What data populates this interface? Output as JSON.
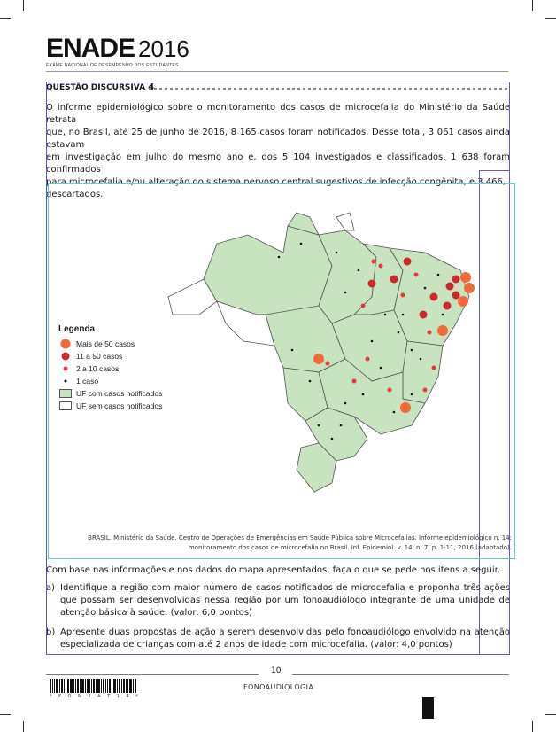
{
  "header": {
    "logo_main": "ENADE",
    "logo_year": "2016",
    "logo_subtitle": "EXAME NACIONAL DE DESEMPENHO DOS ESTUDANTES"
  },
  "question": {
    "title_prefix": "QUESTÃO DISCURSIVA",
    "title_number": "4",
    "lines": [
      "O informe epidemiológico sobre o monitoramento dos casos de microcefalia do Ministério da Saúde retrata",
      "que, no Brasil, até 25 de junho de 2016, 8 165 casos foram notificados. Desse total, 3 061 casos ainda estavam",
      "em investigação em julho do mesmo ano e, dos 5 104 investigados e classificados, 1 638 foram confirmados",
      "para microcefalia e/ou alteração do sistema nervoso central sugestivos de infecção congênita, e 3 466,",
      "descartados."
    ]
  },
  "map": {
    "legend": {
      "title": "Legenda",
      "items": [
        {
          "label": "Mais de 50 casos",
          "symbol": "large-orange-circle",
          "color": "#f26a3b"
        },
        {
          "label": "11 a 50 casos",
          "symbol": "medium-red-circle",
          "color": "#cc2a2a"
        },
        {
          "label": "2 a 10 casos",
          "symbol": "small-red-circle",
          "color": "#e33b3b"
        },
        {
          "label": "1 caso",
          "symbol": "black-dot",
          "color": "#111111"
        },
        {
          "label": "UF com casos notificados",
          "symbol": "green-box",
          "color": "#c7e3bf"
        },
        {
          "label": "UF sem casos notificados",
          "symbol": "white-box",
          "color": "#ffffff"
        }
      ]
    },
    "caption_line1": "BRASIL. Ministério da Saúde. Centro de Operações de Emergências em Saúde Pública sobre Microcefalias. Informe epidemiológico n. 14:",
    "caption_line2": "monitoramento dos casos de microcefalia no Brasil. Inf. Epidemiol. v. 14, n. 7, p. 1-11, 2016 (adaptado)."
  },
  "prompt": "Com base nas informações e nos dados do mapa apresentados, faça o que se pede nos itens a seguir.",
  "items": [
    {
      "label": "a)",
      "text": "Identifique a região com maior número de casos notificados de microcefalia e proponha três ações que possam ser desenvolvidas nessa região por um fonoaudiólogo integrante de uma unidade de atenção básica à saúde. (valor: 6,0 pontos)"
    },
    {
      "label": "b)",
      "text": "Apresente duas propostas de ação a serem desenvolvidas pelo fonoaudiólogo envolvido na atenção especializada de crianças com até 2 anos de idade com microcefalia. (valor: 4,0 pontos)"
    }
  ],
  "footer": {
    "page_number": "10",
    "course": "FONOAUDIOLOGIA",
    "barcode_number": "* F O N 2 A T 1 4 *"
  }
}
